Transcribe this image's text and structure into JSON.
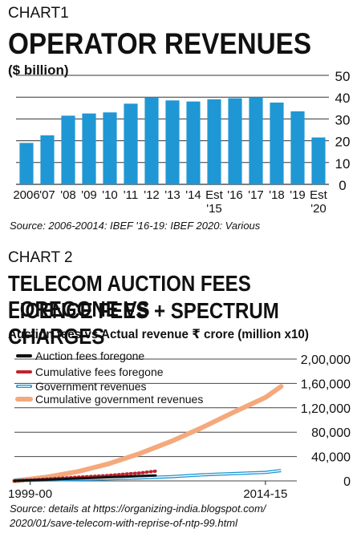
{
  "chart1": {
    "label": "CHART1",
    "title": "OPERATOR REVENUES",
    "unit": "($ billion)",
    "source": "Source: 2006-20014: IBEF  '16-19: IBEF  2020: Various"
  },
  "chart2": {
    "label": "CHART 2",
    "title_line1": "TELECOM AUCTION FEES FOREGONE VS",
    "title_line2": "LICENCE FEES + SPECTRUM CHARGES",
    "subtitle": "Auction fees vs Actual revenue ₹ crore (million x10)",
    "source_line1": "Source: details at https://organizing-india.blogspot.com/",
    "source_line2": "2020/01/save-telecom-with-reprise-of-ntp-99.html"
  },
  "chart_data": [
    {
      "type": "bar",
      "title": "OPERATOR REVENUES",
      "ylabel": "($ billion)",
      "categories": [
        "2006",
        "'07",
        "'08",
        "'09",
        "'10",
        "'11",
        "'12",
        "'13",
        "'14",
        "Est '15",
        "'16",
        "'17",
        "'18",
        "'19",
        "Est '20"
      ],
      "category_lines": [
        [
          "2006"
        ],
        [
          "'07"
        ],
        [
          "'08"
        ],
        [
          "'09"
        ],
        [
          "'10"
        ],
        [
          "'11"
        ],
        [
          "'12"
        ],
        [
          "'13"
        ],
        [
          "'14"
        ],
        [
          "Est",
          "'15"
        ],
        [
          "'16"
        ],
        [
          "'17"
        ],
        [
          "'18"
        ],
        [
          "'19"
        ],
        [
          "Est",
          "'20"
        ]
      ],
      "values": [
        19,
        22.5,
        31.5,
        32.5,
        33,
        37,
        40,
        38.5,
        38,
        39,
        39.5,
        40,
        37.5,
        33.5,
        21.5
      ],
      "ylim": [
        0,
        50
      ],
      "yticks": [
        "0",
        "10",
        "20",
        "30",
        "40",
        "50"
      ],
      "ytick_values": [
        0,
        10,
        20,
        30,
        40,
        50
      ],
      "grid": true,
      "bar_color": "#1f97d4",
      "axis_side": "right"
    },
    {
      "type": "line",
      "title": "TELECOM AUCTION FEES FOREGONE VS LICENCE FEES + SPECTRUM CHARGES",
      "ylabel": "Auction fees vs Actual revenue ₹ crore (million x10)",
      "xticks": [
        "1999-00",
        "2014-15"
      ],
      "xtick_values": [
        1999,
        2014
      ],
      "xlim": [
        1998,
        2016
      ],
      "ylim": [
        0,
        200000
      ],
      "yticks": [
        "0",
        "40,000",
        "80,000",
        "1,20,000",
        "1,60,000",
        "2,00,000"
      ],
      "ytick_values": [
        0,
        40000,
        80000,
        120000,
        160000,
        200000
      ],
      "grid": true,
      "legend_position": "top-left",
      "series": [
        {
          "name": "Auction fees foregone",
          "color": "#111111",
          "width": 3,
          "dash": "",
          "x": [
            1998,
            1999,
            2000,
            2001,
            2002,
            2003,
            2004,
            2005,
            2006,
            2007
          ],
          "y": [
            0,
            1000,
            2000,
            3000,
            4000,
            5000,
            6000,
            7000,
            8000,
            9000
          ]
        },
        {
          "name": "Cumulative fees foregone",
          "color": "#c0232e",
          "width": 4,
          "dash": "1,4",
          "x": [
            1998,
            1999,
            2000,
            2001,
            2002,
            2003,
            2004,
            2005,
            2006,
            2007
          ],
          "y": [
            0,
            1500,
            3000,
            4500,
            6000,
            7500,
            9000,
            11000,
            13000,
            16000
          ]
        },
        {
          "name": "Government revenues",
          "color": "#1f97d4",
          "width": 1.4,
          "dash": "",
          "double": true,
          "x": [
            1998,
            2000,
            2002,
            2004,
            2006,
            2008,
            2010,
            2011,
            2012,
            2013,
            2014,
            2015
          ],
          "y": [
            1000,
            1500,
            2500,
            3500,
            5000,
            7000,
            10000,
            11000,
            12000,
            13000,
            14000,
            17000
          ]
        },
        {
          "name": "Cumulative government revenues",
          "color": "#f4a97d",
          "width": 6,
          "dash": "",
          "x": [
            1998,
            2000,
            2002,
            2004,
            2006,
            2008,
            2010,
            2012,
            2014,
            2015
          ],
          "y": [
            0,
            6000,
            15000,
            28000,
            45000,
            65000,
            88000,
            113000,
            137000,
            155000
          ]
        }
      ]
    }
  ]
}
